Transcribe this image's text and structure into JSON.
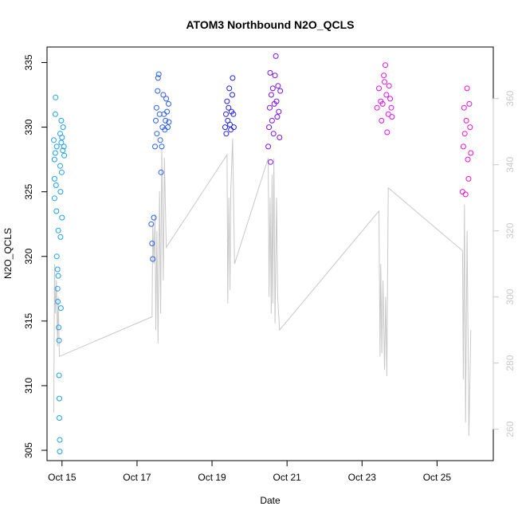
{
  "chart_data": {
    "type": "scatter",
    "title": "ATOM3 Northbound N2O_QCLS",
    "xlabel": "Date",
    "ylabel": "N2O_QCLS",
    "y2label": "",
    "xlim": [
      14.6,
      26.5
    ],
    "ylim": [
      304.2,
      336.2
    ],
    "y2lim": [
      250.5,
      375.6
    ],
    "x_ticks": [
      {
        "value": 15,
        "label": "Oct 15"
      },
      {
        "value": 17,
        "label": "Oct 17"
      },
      {
        "value": 19,
        "label": "Oct 19"
      },
      {
        "value": 21,
        "label": "Oct 21"
      },
      {
        "value": 23,
        "label": "Oct 23"
      },
      {
        "value": 25,
        "label": "Oct 25"
      }
    ],
    "y_ticks": [
      305,
      310,
      315,
      320,
      325,
      330,
      335
    ],
    "y2_ticks": [
      260,
      280,
      300,
      320,
      340,
      360
    ],
    "grid": false,
    "legend": "none",
    "series": [
      {
        "color": "#1f9eea",
        "points": [
          [
            14.78,
            329.0
          ],
          [
            14.8,
            327.5
          ],
          [
            14.8,
            326.0
          ],
          [
            14.8,
            324.5
          ],
          [
            14.82,
            328.0
          ],
          [
            14.82,
            331.0
          ],
          [
            14.83,
            332.3
          ],
          [
            14.84,
            325.5
          ],
          [
            14.85,
            323.5
          ],
          [
            14.86,
            328.5
          ],
          [
            14.86,
            320.0
          ],
          [
            14.88,
            319.0
          ],
          [
            14.88,
            317.5
          ],
          [
            14.89,
            316.5
          ],
          [
            14.9,
            322.0
          ],
          [
            14.9,
            318.5
          ],
          [
            14.91,
            314.5
          ],
          [
            14.92,
            313.5
          ],
          [
            14.92,
            310.8
          ],
          [
            14.93,
            309.0
          ],
          [
            14.93,
            307.5
          ],
          [
            14.94,
            305.8
          ],
          [
            14.94,
            304.9
          ],
          [
            14.95,
            329.5
          ],
          [
            14.95,
            327.0
          ],
          [
            14.96,
            325.0
          ],
          [
            14.96,
            321.5
          ],
          [
            14.97,
            316.0
          ],
          [
            14.98,
            330.5
          ],
          [
            14.98,
            328.8
          ],
          [
            14.99,
            326.5
          ],
          [
            15.0,
            329.2
          ],
          [
            15.0,
            323.0
          ],
          [
            15.02,
            328.2
          ],
          [
            15.03,
            330.0
          ],
          [
            15.05,
            328.5
          ],
          [
            15.06,
            327.8
          ]
        ]
      },
      {
        "color": "#2a5ff0",
        "points": [
          [
            17.38,
            322.5
          ],
          [
            17.4,
            321.0
          ],
          [
            17.42,
            319.8
          ],
          [
            17.45,
            323.0
          ],
          [
            17.48,
            328.5
          ],
          [
            17.5,
            330.5
          ],
          [
            17.52,
            331.5
          ],
          [
            17.53,
            329.5
          ],
          [
            17.55,
            332.8
          ],
          [
            17.56,
            333.8
          ],
          [
            17.58,
            334.1
          ],
          [
            17.6,
            331.0
          ],
          [
            17.62,
            329.0
          ],
          [
            17.64,
            326.5
          ],
          [
            17.66,
            328.5
          ],
          [
            17.68,
            330.0
          ],
          [
            17.7,
            332.5
          ],
          [
            17.72,
            331.0
          ],
          [
            17.74,
            329.8
          ],
          [
            17.76,
            330.5
          ],
          [
            17.78,
            332.2
          ],
          [
            17.8,
            331.2
          ],
          [
            17.82,
            330.0
          ],
          [
            17.84,
            331.8
          ],
          [
            17.85,
            330.4
          ]
        ]
      },
      {
        "color": "#2020f0",
        "points": [
          [
            19.35,
            330.0
          ],
          [
            19.37,
            331.0
          ],
          [
            19.38,
            329.5
          ],
          [
            19.4,
            332.0
          ],
          [
            19.42,
            330.5
          ],
          [
            19.44,
            331.5
          ],
          [
            19.46,
            333.0
          ],
          [
            19.48,
            330.2
          ],
          [
            19.5,
            329.8
          ],
          [
            19.52,
            331.2
          ],
          [
            19.54,
            332.5
          ],
          [
            19.55,
            333.8
          ],
          [
            19.57,
            331.0
          ],
          [
            19.58,
            330.0
          ]
        ]
      },
      {
        "color": "#7a12ee",
        "points": [
          [
            20.5,
            328.5
          ],
          [
            20.52,
            330.0
          ],
          [
            20.54,
            331.5
          ],
          [
            20.55,
            334.2
          ],
          [
            20.56,
            327.3
          ],
          [
            20.58,
            332.5
          ],
          [
            20.6,
            330.5
          ],
          [
            20.62,
            333.0
          ],
          [
            20.64,
            329.5
          ],
          [
            20.66,
            331.8
          ],
          [
            20.68,
            334.0
          ],
          [
            20.7,
            335.5
          ],
          [
            20.72,
            332.0
          ],
          [
            20.74,
            330.8
          ],
          [
            20.76,
            333.2
          ],
          [
            20.78,
            331.2
          ],
          [
            20.8,
            329.2
          ],
          [
            20.82,
            332.8
          ]
        ]
      },
      {
        "color": "#e010ee",
        "points": [
          [
            23.4,
            331.5
          ],
          [
            23.45,
            333.0
          ],
          [
            23.5,
            332.0
          ],
          [
            23.52,
            330.5
          ],
          [
            23.55,
            331.8
          ],
          [
            23.58,
            334.0
          ],
          [
            23.6,
            333.5
          ],
          [
            23.62,
            334.8
          ],
          [
            23.65,
            332.5
          ],
          [
            23.67,
            329.6
          ],
          [
            23.7,
            331.0
          ],
          [
            23.72,
            333.2
          ],
          [
            23.75,
            332.2
          ],
          [
            23.78,
            331.5
          ],
          [
            23.8,
            330.8
          ]
        ]
      },
      {
        "color": "#ee10cc",
        "points": [
          [
            25.68,
            325.0
          ],
          [
            25.7,
            328.5
          ],
          [
            25.72,
            331.5
          ],
          [
            25.74,
            329.5
          ],
          [
            25.76,
            324.8
          ],
          [
            25.78,
            330.5
          ],
          [
            25.8,
            333.0
          ],
          [
            25.82,
            327.5
          ],
          [
            25.84,
            326.0
          ],
          [
            25.86,
            331.8
          ],
          [
            25.88,
            330.0
          ],
          [
            25.9,
            328.0
          ]
        ]
      }
    ],
    "secondary_line": {
      "color": "#c8c8c8",
      "points": [
        [
          14.78,
          265
        ],
        [
          14.8,
          310
        ],
        [
          14.82,
          295
        ],
        [
          14.85,
          305
        ],
        [
          14.88,
          285
        ],
        [
          14.9,
          300
        ],
        [
          14.93,
          282
        ],
        [
          17.4,
          294
        ],
        [
          17.42,
          322
        ],
        [
          17.45,
          310
        ],
        [
          17.48,
          325
        ],
        [
          17.5,
          290
        ],
        [
          17.53,
          320
        ],
        [
          17.56,
          286
        ],
        [
          17.6,
          332
        ],
        [
          17.63,
          295
        ],
        [
          17.66,
          345
        ],
        [
          17.7,
          305
        ],
        [
          17.73,
          342
        ],
        [
          17.78,
          315
        ],
        [
          19.4,
          343
        ],
        [
          19.42,
          298
        ],
        [
          19.45,
          330
        ],
        [
          19.48,
          302
        ],
        [
          19.5,
          332
        ],
        [
          19.55,
          348
        ],
        [
          19.6,
          310
        ],
        [
          20.5,
          342
        ],
        [
          20.52,
          300
        ],
        [
          20.55,
          330
        ],
        [
          20.58,
          295
        ],
        [
          20.6,
          337
        ],
        [
          20.62,
          298
        ],
        [
          20.65,
          342
        ],
        [
          20.68,
          292
        ],
        [
          20.72,
          330
        ],
        [
          20.75,
          300
        ],
        [
          20.8,
          290
        ],
        [
          23.45,
          326
        ],
        [
          23.48,
          282
        ],
        [
          23.5,
          310
        ],
        [
          23.53,
          283
        ],
        [
          23.56,
          305
        ],
        [
          23.6,
          278
        ],
        [
          23.63,
          300
        ],
        [
          23.66,
          276
        ],
        [
          23.7,
          333
        ],
        [
          25.68,
          314
        ],
        [
          25.7,
          275
        ],
        [
          25.73,
          328
        ],
        [
          25.76,
          262
        ],
        [
          25.8,
          320
        ],
        [
          25.85,
          258
        ],
        [
          25.9,
          290
        ]
      ]
    }
  }
}
